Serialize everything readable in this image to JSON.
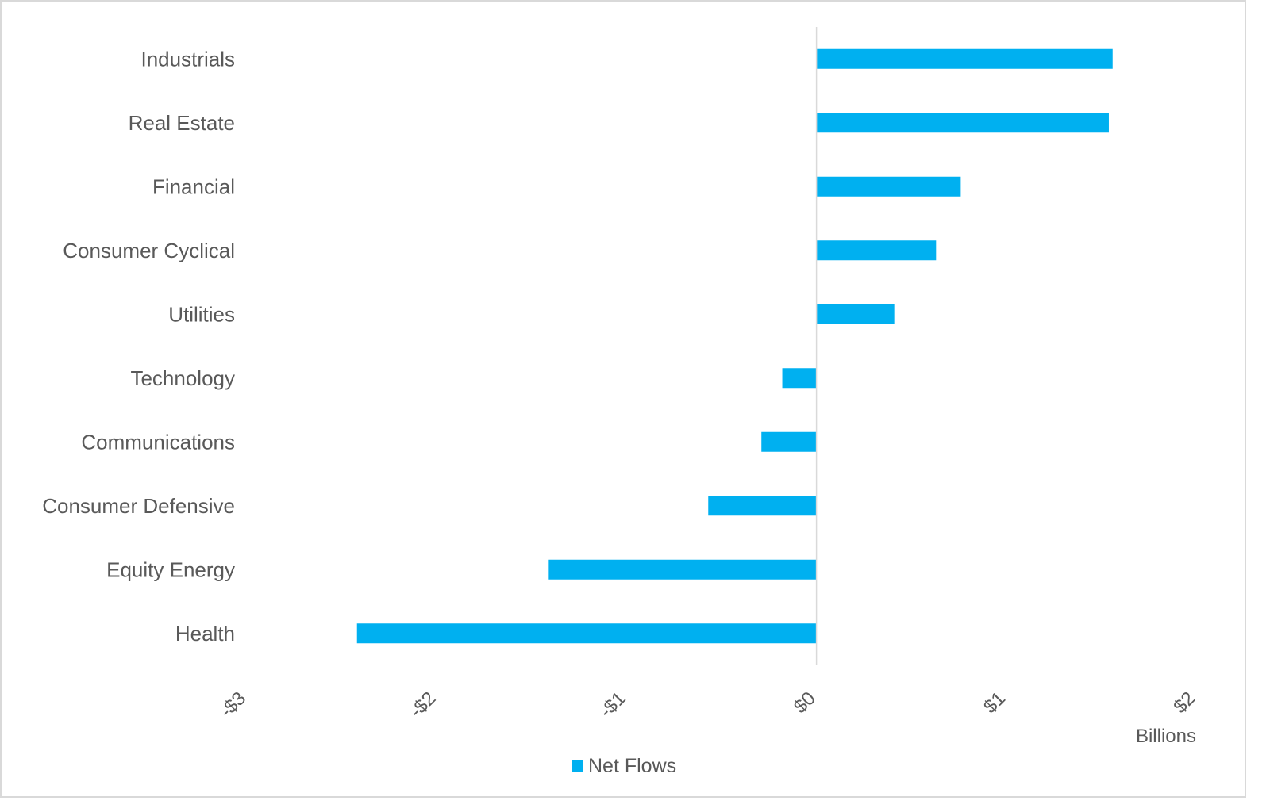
{
  "chart_data": {
    "type": "bar",
    "orientation": "horizontal",
    "categories": [
      "Industrials",
      "Real Estate",
      "Financial",
      "Consumer Cyclical",
      "Utilities",
      "Technology",
      "Communications",
      "Consumer Defensive",
      "Equity Energy",
      "Health"
    ],
    "series": [
      {
        "name": "Net Flows",
        "color": "#00b0f0",
        "values": [
          1.56,
          1.54,
          0.76,
          0.63,
          0.41,
          -0.18,
          -0.29,
          -0.57,
          -1.41,
          -2.42
        ]
      }
    ],
    "xlim": [
      -3,
      2
    ],
    "xticks": [
      -3,
      -2,
      -1,
      0,
      1,
      2
    ],
    "xtick_labels": [
      "-$3",
      "-$2",
      "-$1",
      "$0",
      "$1",
      "$2"
    ],
    "xunit_label": "Billions",
    "legend": {
      "position": "bottom",
      "entries": [
        "Net Flows"
      ]
    },
    "grid": false,
    "colors": {
      "bar": "#00b0f0",
      "text": "#595959",
      "axis": "#d9d9d9",
      "frame": "#d9d9d9"
    }
  }
}
